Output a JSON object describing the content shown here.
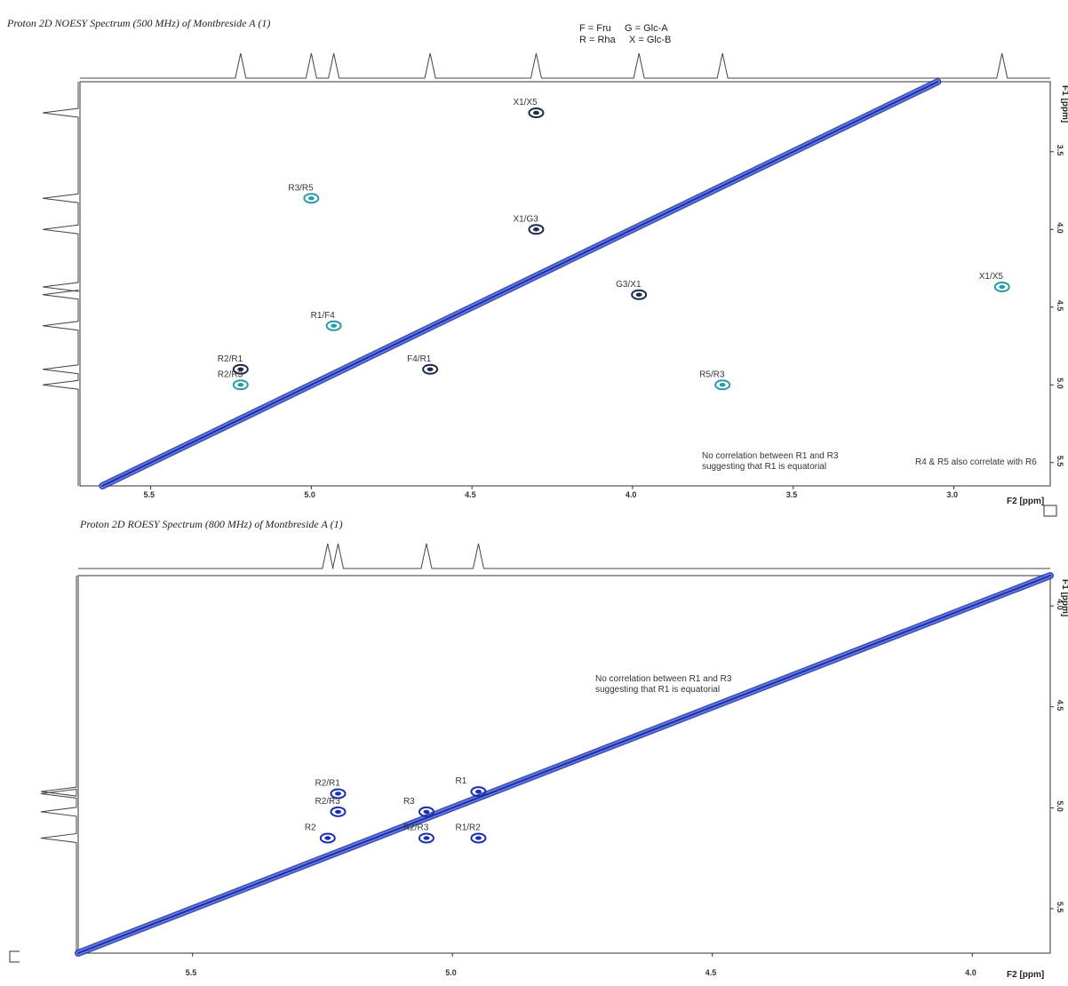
{
  "legend": {
    "line1": "F = Fru     G = Glc-A",
    "line2": "R = Rha     X = Glc-B"
  },
  "chart_data": [
    {
      "type": "heatmap",
      "title": "Proton 2D NOESY Spectrum (500 MHz) of Montbreside A (1)",
      "xlabel": "F2 [ppm]",
      "ylabel": "F1 [ppm]",
      "xlim": [
        5.72,
        2.7
      ],
      "ylim": [
        3.05,
        5.65
      ],
      "x_ticks": [
        "5.5",
        "5.0",
        "4.5",
        "4.0",
        "3.5",
        "3.0"
      ],
      "x_tick_values": [
        5.5,
        5.0,
        4.5,
        4.0,
        3.5,
        3.0
      ],
      "y_ticks": [
        "3.0",
        "3.5",
        "4.0",
        "4.5",
        "5.0",
        "5.5"
      ],
      "y_tick_values": [
        3.0,
        3.5,
        4.0,
        4.5,
        5.0,
        5.5
      ],
      "diagonal_color": "#1a2fb0",
      "contour_colors": [
        "#1a2fb0",
        "#2a9aa8",
        "#1c2b4a"
      ],
      "cross_peaks": [
        {
          "label": "X1/X5",
          "x": 4.3,
          "y": 3.25
        },
        {
          "label": "R3/R5",
          "x": 5.0,
          "y": 3.8
        },
        {
          "label": "X1/G3",
          "x": 4.3,
          "y": 4.0
        },
        {
          "label": "X1/X5",
          "x": 2.85,
          "y": 4.37
        },
        {
          "label": "G3/X1",
          "x": 3.98,
          "y": 4.42
        },
        {
          "label": "R1/F4",
          "x": 4.93,
          "y": 4.62
        },
        {
          "label": "R2/R1",
          "x": 5.22,
          "y": 4.9
        },
        {
          "label": "R2/R3",
          "x": 5.22,
          "y": 5.0
        },
        {
          "label": "F4/R1",
          "x": 4.63,
          "y": 4.9
        },
        {
          "label": "R5/R3",
          "x": 3.72,
          "y": 5.0
        }
      ],
      "notes": [
        "No correlation between R1 and R3",
        "suggesting that R1 is equatorial",
        "R4 & R5 also correlate with R6"
      ]
    },
    {
      "type": "heatmap",
      "title": "Proton 2D ROESY Spectrum (800 MHz) of Montbreside A (1)",
      "xlabel": "F2 [ppm]",
      "ylabel": "F1 [ppm]",
      "xlim": [
        5.72,
        3.85
      ],
      "ylim": [
        3.85,
        5.72
      ],
      "x_ticks": [
        "5.5",
        "5.0",
        "4.5",
        "4.0"
      ],
      "x_tick_values": [
        5.5,
        5.0,
        4.5,
        4.0
      ],
      "y_ticks": [
        "4.0",
        "4.5",
        "5.0",
        "5.5"
      ],
      "y_tick_values": [
        4.0,
        4.5,
        5.0,
        5.5
      ],
      "diagonal_color": "#1a2fb0",
      "cross_peaks": [
        {
          "label": "R1",
          "x": 4.95,
          "y": 4.92
        },
        {
          "label": "R3",
          "x": 5.05,
          "y": 5.02
        },
        {
          "label": "R2/R1",
          "x": 5.22,
          "y": 4.93
        },
        {
          "label": "R2/R3",
          "x": 5.22,
          "y": 5.02
        },
        {
          "label": "R2",
          "x": 5.24,
          "y": 5.15
        },
        {
          "label": "R2/R3",
          "x": 5.05,
          "y": 5.15
        },
        {
          "label": "R1/R2",
          "x": 4.95,
          "y": 5.15
        }
      ],
      "notes": [
        "No correlation between R1 and R3",
        "suggesting that R1 is equatorial"
      ]
    }
  ]
}
